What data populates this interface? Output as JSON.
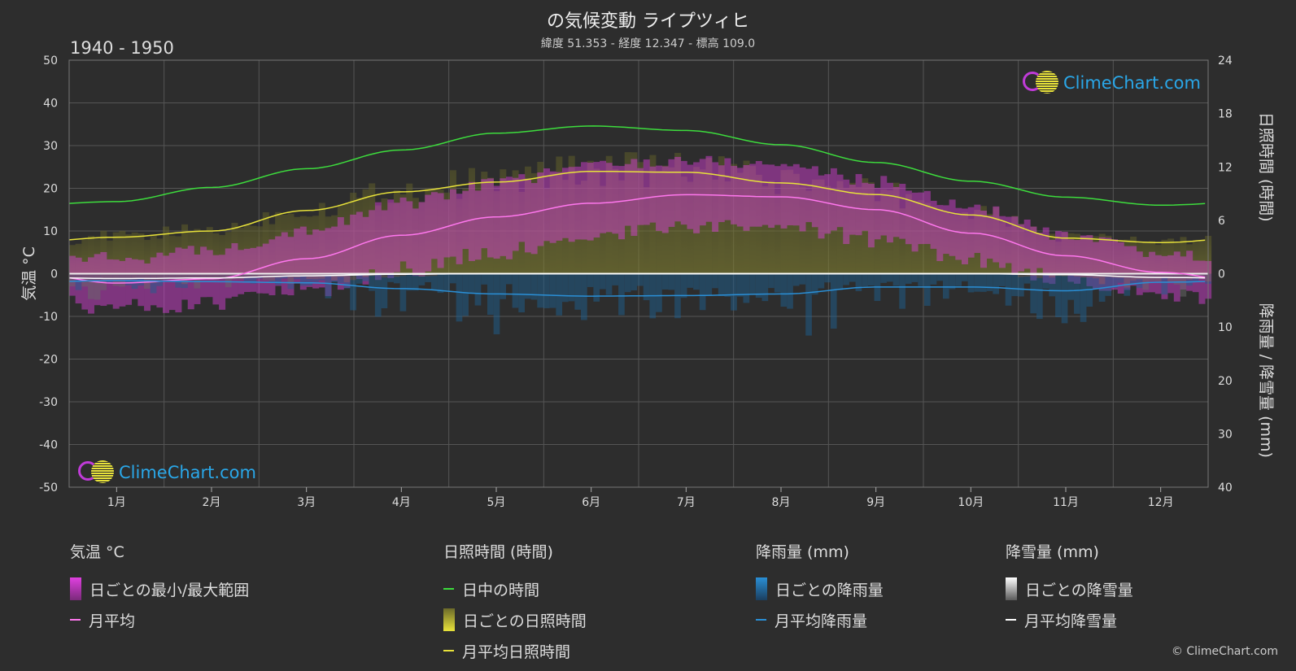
{
  "title": "の気候変動 ライプツィヒ",
  "subtitle": "緯度 51.353 - 経度 12.347 - 標高 109.0",
  "period": "1940 - 1950",
  "logo_text": "ClimeChart.com",
  "copyright": "© ClimeChart.com",
  "chart_data": {
    "type": "area",
    "x_categories": [
      "1月",
      "2月",
      "3月",
      "4月",
      "5月",
      "6月",
      "7月",
      "8月",
      "9月",
      "10月",
      "11月",
      "12月"
    ],
    "axes": {
      "left": {
        "label": "気温 °C",
        "min": -50,
        "max": 50,
        "ticks": [
          50,
          40,
          30,
          20,
          10,
          0,
          -10,
          -20,
          -30,
          -40,
          -50
        ]
      },
      "right_top": {
        "label": "日照時間 (時間)",
        "min": 0,
        "max": 24,
        "ticks": [
          24,
          18,
          12,
          6,
          0
        ]
      },
      "right_bottom": {
        "label": "降雨量 / 降雪量 (mm)",
        "min": 0,
        "max": 40,
        "ticks": [
          10,
          20,
          30,
          40
        ]
      }
    },
    "series": [
      {
        "name": "日中の時間",
        "unit": "時間",
        "color": "#3ddc3d",
        "values": [
          8.1,
          9.7,
          11.8,
          13.9,
          15.8,
          16.6,
          16.1,
          14.5,
          12.5,
          10.4,
          8.6,
          7.7
        ]
      },
      {
        "name": "月平均日照時間",
        "unit": "時間",
        "color": "#e8e23a",
        "values": [
          4.1,
          4.8,
          7.1,
          9.2,
          10.3,
          11.5,
          11.4,
          10.2,
          8.9,
          6.6,
          4.0,
          3.5
        ]
      },
      {
        "name": "月平均",
        "unit": "°C",
        "color": "#ff77ee",
        "values": [
          -2.2,
          -1.2,
          3.5,
          9.0,
          13.3,
          16.5,
          18.5,
          18.0,
          15.0,
          9.5,
          4.2,
          0.3
        ]
      },
      {
        "name": "月平均降雨量",
        "unit": "mm",
        "color": "#2a8fd6",
        "values": [
          1.3,
          1.5,
          1.7,
          2.8,
          3.8,
          4.2,
          4.1,
          3.8,
          2.5,
          2.5,
          3.2,
          1.6
        ]
      },
      {
        "name": "月平均降雪量",
        "unit": "mm",
        "color": "#ffffff",
        "values": [
          0.9,
          0.8,
          0.4,
          0.1,
          0,
          0,
          0,
          0,
          0,
          0,
          0.2,
          0.7
        ]
      },
      {
        "name": "日ごとの最小/最大範囲",
        "unit": "°C",
        "min": [
          -6,
          -5,
          -2,
          3,
          7,
          11,
          13,
          13,
          10,
          5,
          1,
          -3
        ],
        "max": [
          2,
          4,
          9,
          15,
          20,
          24,
          25,
          24,
          20,
          14,
          7,
          3
        ]
      }
    ]
  },
  "legend": {
    "temp": {
      "title": "気温 °C",
      "items": [
        "日ごとの最小/最大範囲",
        "月平均"
      ]
    },
    "sun": {
      "title": "日照時間 (時間)",
      "items": [
        "日中の時間",
        "日ごとの日照時間",
        "月平均日照時間"
      ]
    },
    "rain": {
      "title": "降雨量 (mm)",
      "items": [
        "日ごとの降雨量",
        "月平均降雨量"
      ]
    },
    "snow": {
      "title": "降雪量 (mm)",
      "items": [
        "日ごとの降雪量",
        "月平均降雪量"
      ]
    }
  },
  "colors": {
    "background": "#2d2d2d",
    "grid": "#555555",
    "daylight": "#3ddc3d",
    "sunshine": "#e8e23a",
    "temp_range": "#e040e0",
    "temp_mean": "#ff77ee",
    "rain": "#2a8fd6",
    "snow": "#ffffff"
  }
}
